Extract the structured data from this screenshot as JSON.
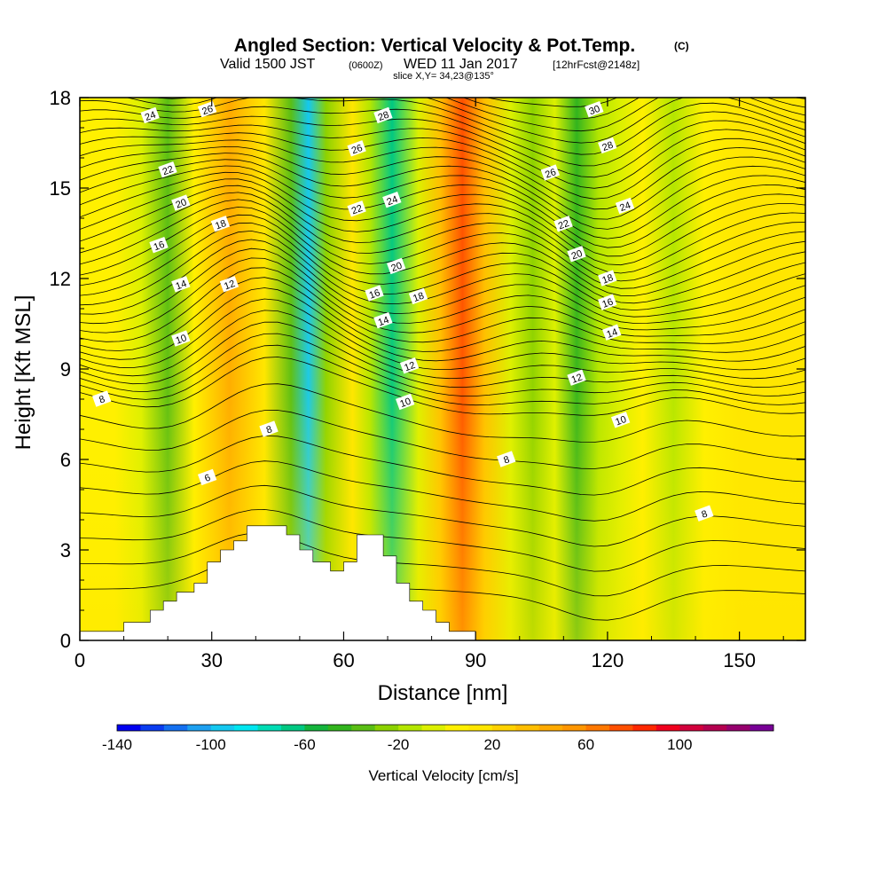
{
  "title": {
    "main": "Angled Section: Vertical Velocity & Pot.Temp.",
    "main_tag": "(C)",
    "sub_valid": "Valid 1500 JST",
    "sub_utc": "(0600Z)",
    "sub_date": "WED 11 Jan 2017",
    "sub_fcst": "[12hrFcst@2148z]",
    "slice": "slice X,Y= 34,23@135°"
  },
  "chart_data": {
    "type": "heatmap",
    "xlabel": "Distance [nm]",
    "ylabel": "Height [Kft MSL]",
    "xlim": [
      0,
      165
    ],
    "ylim": [
      0,
      18
    ],
    "x_ticks": [
      0,
      30,
      60,
      90,
      120,
      150
    ],
    "y_ticks": [
      0,
      3,
      6,
      9,
      12,
      15,
      18
    ],
    "colorbar": {
      "label": "Vertical Velocity [cm/s]",
      "min": -140,
      "max": 140,
      "step": 10,
      "tick_labels": [
        -140,
        -100,
        -60,
        -20,
        20,
        60,
        100
      ],
      "colors": [
        "#0000f0",
        "#0a3cf0",
        "#1470f0",
        "#1ea0f0",
        "#14c8f0",
        "#00e6f0",
        "#00dcb4",
        "#00c882",
        "#14b43c",
        "#32b41e",
        "#5abe14",
        "#8cd200",
        "#b4e600",
        "#dcf000",
        "#fff000",
        "#ffe600",
        "#ffd200",
        "#ffbe00",
        "#ffaa00",
        "#ff9600",
        "#ff7800",
        "#ff5000",
        "#ff2800",
        "#f0001e",
        "#d2003c",
        "#b40050",
        "#96006e",
        "#780096"
      ]
    },
    "vertical_velocity_columns": [
      {
        "x": 0,
        "w": 2
      },
      {
        "x": 8,
        "w": 6
      },
      {
        "x": 14,
        "w": -4
      },
      {
        "x": 20,
        "w": -38
      },
      {
        "x": 26,
        "w": 8
      },
      {
        "x": 34,
        "w": 45
      },
      {
        "x": 42,
        "w": 15
      },
      {
        "x": 48,
        "w": -40
      },
      {
        "x": 52,
        "w": -95
      },
      {
        "x": 56,
        "w": -30
      },
      {
        "x": 62,
        "w": 15
      },
      {
        "x": 66,
        "w": -20
      },
      {
        "x": 71,
        "w": -65
      },
      {
        "x": 77,
        "w": -10
      },
      {
        "x": 82,
        "w": 30
      },
      {
        "x": 87,
        "w": 75
      },
      {
        "x": 92,
        "w": 35
      },
      {
        "x": 98,
        "w": -5
      },
      {
        "x": 103,
        "w": -30
      },
      {
        "x": 108,
        "w": -10
      },
      {
        "x": 113,
        "w": -48
      },
      {
        "x": 118,
        "w": -20
      },
      {
        "x": 123,
        "w": -5
      },
      {
        "x": 128,
        "w": 5
      },
      {
        "x": 135,
        "w": -20
      },
      {
        "x": 142,
        "w": 0
      },
      {
        "x": 150,
        "w": 15
      },
      {
        "x": 158,
        "w": 10
      },
      {
        "x": 165,
        "w": 18
      }
    ],
    "theta_contours": {
      "levels": [
        6,
        8,
        10,
        12,
        14,
        16,
        18,
        20,
        22,
        24,
        26,
        28,
        30
      ],
      "labels": [
        {
          "text": "24",
          "x": 16,
          "y": 17.4
        },
        {
          "text": "26",
          "x": 29,
          "y": 17.6
        },
        {
          "text": "22",
          "x": 20,
          "y": 15.6
        },
        {
          "text": "20",
          "x": 23,
          "y": 14.5
        },
        {
          "text": "18",
          "x": 32,
          "y": 13.8
        },
        {
          "text": "16",
          "x": 18,
          "y": 13.1
        },
        {
          "text": "14",
          "x": 23,
          "y": 11.8
        },
        {
          "text": "12",
          "x": 34,
          "y": 11.8
        },
        {
          "text": "10",
          "x": 23,
          "y": 10.0
        },
        {
          "text": "8",
          "x": 5,
          "y": 8.0
        },
        {
          "text": "6",
          "x": 29,
          "y": 5.4
        },
        {
          "text": "8",
          "x": 43,
          "y": 7.0
        },
        {
          "text": "26",
          "x": 63,
          "y": 16.3
        },
        {
          "text": "28",
          "x": 69,
          "y": 17.4
        },
        {
          "text": "22",
          "x": 63,
          "y": 14.3
        },
        {
          "text": "24",
          "x": 71,
          "y": 14.6
        },
        {
          "text": "20",
          "x": 72,
          "y": 12.4
        },
        {
          "text": "16",
          "x": 67,
          "y": 11.5
        },
        {
          "text": "18",
          "x": 77,
          "y": 11.4
        },
        {
          "text": "14",
          "x": 69,
          "y": 10.6
        },
        {
          "text": "12",
          "x": 75,
          "y": 9.1
        },
        {
          "text": "10",
          "x": 74,
          "y": 7.9
        },
        {
          "text": "8",
          "x": 97,
          "y": 6.0
        },
        {
          "text": "30",
          "x": 117,
          "y": 17.6
        },
        {
          "text": "28",
          "x": 120,
          "y": 16.4
        },
        {
          "text": "26",
          "x": 107,
          "y": 15.5
        },
        {
          "text": "24",
          "x": 124,
          "y": 14.4
        },
        {
          "text": "22",
          "x": 110,
          "y": 13.8
        },
        {
          "text": "20",
          "x": 113,
          "y": 12.8
        },
        {
          "text": "18",
          "x": 120,
          "y": 12.0
        },
        {
          "text": "16",
          "x": 120,
          "y": 11.2
        },
        {
          "text": "14",
          "x": 121,
          "y": 10.2
        },
        {
          "text": "12",
          "x": 113,
          "y": 8.7
        },
        {
          "text": "10",
          "x": 123,
          "y": 7.3
        },
        {
          "text": "8",
          "x": 142,
          "y": 4.2
        }
      ]
    },
    "terrain": [
      [
        0,
        0.3
      ],
      [
        10,
        0.3
      ],
      [
        10,
        0.6
      ],
      [
        16,
        0.6
      ],
      [
        16,
        1.0
      ],
      [
        19,
        1.0
      ],
      [
        19,
        1.3
      ],
      [
        22,
        1.3
      ],
      [
        22,
        1.6
      ],
      [
        26,
        1.6
      ],
      [
        26,
        1.9
      ],
      [
        29,
        1.9
      ],
      [
        29,
        2.6
      ],
      [
        32,
        2.6
      ],
      [
        32,
        3.0
      ],
      [
        35,
        3.0
      ],
      [
        35,
        3.3
      ],
      [
        38,
        3.3
      ],
      [
        38,
        3.8
      ],
      [
        47,
        3.8
      ],
      [
        47,
        3.5
      ],
      [
        50,
        3.5
      ],
      [
        50,
        3.0
      ],
      [
        53,
        3.0
      ],
      [
        53,
        2.6
      ],
      [
        57,
        2.6
      ],
      [
        57,
        2.3
      ],
      [
        60,
        2.3
      ],
      [
        60,
        2.6
      ],
      [
        63,
        2.6
      ],
      [
        63,
        3.5
      ],
      [
        69,
        3.5
      ],
      [
        69,
        2.8
      ],
      [
        72,
        2.8
      ],
      [
        72,
        1.9
      ],
      [
        75,
        1.9
      ],
      [
        75,
        1.3
      ],
      [
        78,
        1.3
      ],
      [
        78,
        1.0
      ],
      [
        81,
        1.0
      ],
      [
        81,
        0.6
      ],
      [
        84,
        0.6
      ],
      [
        84,
        0.3
      ],
      [
        90,
        0.3
      ],
      [
        90,
        0
      ],
      [
        0,
        0
      ]
    ]
  }
}
